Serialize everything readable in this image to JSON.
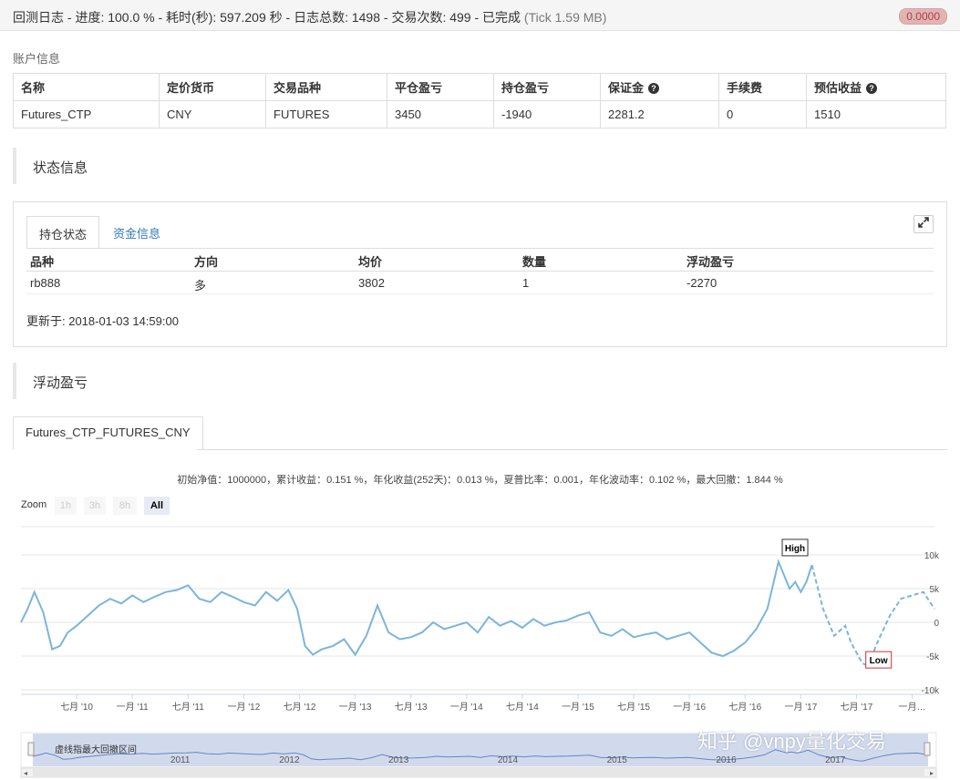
{
  "header": {
    "title": "回测日志 - 进度: 100.0 % - 耗时(秒): 597.209 秒 - 日志总数: 1498 - 交易次数: 499 - 已完成",
    "tick": "(Tick 1.59 MB)",
    "badge": "0.0000"
  },
  "account": {
    "label": "账户信息",
    "headers": [
      "名称",
      "定价货币",
      "交易品种",
      "平仓盈亏",
      "持仓盈亏",
      "保证金",
      "手续费",
      "预估收益"
    ],
    "row": [
      "Futures_CTP",
      "CNY",
      "FUTURES",
      "3450",
      "-1940",
      "2281.2",
      "0",
      "1510"
    ]
  },
  "status": {
    "heading": "状态信息",
    "tabs": [
      "持仓状态",
      "资金信息"
    ],
    "headers": [
      "品种",
      "方向",
      "均价",
      "数量",
      "浮动盈亏"
    ],
    "row": [
      "rb888",
      "多",
      "3802",
      "1",
      "-2270"
    ],
    "updated": "更新于: 2018-01-03 14:59:00"
  },
  "pnl": {
    "heading": "浮动盈亏",
    "tab": "Futures_CTP_FUTURES_CNY",
    "subtitle": "初始净值：1000000，累计收益：0.151 %，年化收益(252天)：0.013 %，夏普比率：0.001，年化波动率：0.102 %，最大回撤：1.844 %",
    "zoom_label": "Zoom",
    "zoom_buttons": [
      "1h",
      "3h",
      "8h",
      "All"
    ],
    "navigator_label": "虚线指最大回撤区间",
    "navigator_years": [
      "2011",
      "2012",
      "2013",
      "2014",
      "2015",
      "2016",
      "2017"
    ],
    "watermark": "知乎 @vnpy量化交易"
  },
  "chart_data": {
    "type": "line",
    "title": "",
    "y_ticks": [
      "10k",
      "5k",
      "0",
      "-5k",
      "-10k"
    ],
    "ylim": [
      -10000,
      10000
    ],
    "x_ticks": [
      "七月 '10",
      "一月 '11",
      "七月 '11",
      "一月 '12",
      "七月 '12",
      "一月 '13",
      "七月 '13",
      "一月 '14",
      "七月 '14",
      "一月 '15",
      "七月 '15",
      "一月 '16",
      "七月 '16",
      "一月 '17",
      "七月 '17",
      "一月…"
    ],
    "x_tick_pos": [
      0.5,
      1.0,
      1.5,
      2.0,
      2.5,
      3.0,
      3.5,
      4.0,
      4.5,
      5.0,
      5.5,
      6.0,
      6.5,
      7.0,
      7.5,
      8.0
    ],
    "series": [
      {
        "x": [
          0.0,
          0.06,
          0.12,
          0.2,
          0.28,
          0.35,
          0.42,
          0.5,
          0.6,
          0.7,
          0.8,
          0.9,
          1.0,
          1.1,
          1.2,
          1.3,
          1.4,
          1.5,
          1.6,
          1.7,
          1.8,
          1.9,
          2.0,
          2.1,
          2.2,
          2.3,
          2.4,
          2.48,
          2.55,
          2.62,
          2.7,
          2.8,
          2.9,
          3.0,
          3.1,
          3.2,
          3.3,
          3.4,
          3.5,
          3.6,
          3.7,
          3.8,
          3.9,
          4.0,
          4.1,
          4.2,
          4.3,
          4.4,
          4.5,
          4.6,
          4.7,
          4.8,
          4.9,
          5.0,
          5.1,
          5.2,
          5.3,
          5.4,
          5.5,
          5.6,
          5.7,
          5.8,
          5.9,
          6.0,
          6.1,
          6.2,
          6.3,
          6.4,
          6.5,
          6.6,
          6.7,
          6.8,
          6.9,
          6.95,
          7.0,
          7.05,
          7.1
        ],
        "y": [
          0,
          2000,
          4500,
          1500,
          -4000,
          -3500,
          -1500,
          -500,
          1000,
          2500,
          3500,
          2800,
          4000,
          3000,
          3800,
          4500,
          4800,
          5500,
          3500,
          3000,
          4500,
          3800,
          3000,
          2500,
          4500,
          3200,
          4800,
          2000,
          -3500,
          -4800,
          -4000,
          -3500,
          -2500,
          -4800,
          -2000,
          2500,
          -1500,
          -2500,
          -2200,
          -1500,
          0,
          -1000,
          -500,
          0,
          -1500,
          800,
          -500,
          200,
          -800,
          500,
          -500,
          0,
          300,
          1000,
          1500,
          -1500,
          -2000,
          -1000,
          -2200,
          -1800,
          -1500,
          -2500,
          -2000,
          -1500,
          -3000,
          -4500,
          -5000,
          -4200,
          -3000,
          -1000,
          2000,
          9000,
          5000,
          6000,
          4500,
          6000,
          8500
        ]
      },
      {
        "x": [
          7.1,
          7.2,
          7.3,
          7.4,
          7.45,
          7.5,
          7.55,
          7.6,
          7.7,
          7.8,
          7.9,
          8.0,
          8.1,
          8.2
        ],
        "y": [
          8500,
          2000,
          -2000,
          -500,
          -3000,
          -4500,
          -6000,
          -6500,
          -2500,
          1000,
          3500,
          4000,
          4500,
          2000
        ]
      }
    ],
    "markers": [
      {
        "label": "High",
        "x": 6.85,
        "y": 9200
      },
      {
        "label": "Low",
        "x": 7.6,
        "y": -6500
      }
    ]
  }
}
